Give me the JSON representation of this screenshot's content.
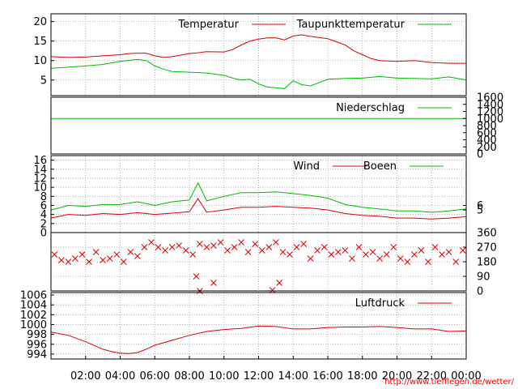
{
  "footer": {
    "url": "http://www.tiefflegen.de/wetter/"
  },
  "colors": {
    "red": "#dd0000",
    "green": "#00bb00",
    "grid": "#a0a0a0",
    "axis": "#000000"
  },
  "chart_data": [
    {
      "id": "temperature",
      "type": "line",
      "legend_placement": "top-right",
      "ylim": [
        1,
        22
      ],
      "y_ticks": [
        "5",
        "10",
        "15",
        "20"
      ],
      "grid": true,
      "series": [
        {
          "name": "Temperatur",
          "color": "#dd0000",
          "x": [
            0.0,
            1.0,
            2.0,
            3.0,
            4.0,
            4.5,
            5.0,
            5.5,
            6.0,
            6.5,
            7.0,
            8.0,
            8.5,
            9.0,
            10.0,
            10.5,
            11.0,
            11.5,
            12.0,
            12.5,
            13.0,
            13.5,
            14.0,
            14.5,
            15.0,
            16.0,
            17.0,
            17.5,
            18.0,
            18.5,
            19.0,
            20.0,
            21.0,
            22.0,
            23.0,
            24.0
          ],
          "values": [
            11.0,
            10.8,
            10.9,
            11.2,
            11.5,
            11.8,
            11.9,
            11.9,
            11.2,
            10.8,
            11.0,
            11.8,
            12.0,
            12.3,
            12.2,
            12.8,
            14.0,
            15.0,
            15.5,
            15.8,
            15.8,
            15.3,
            16.3,
            16.6,
            16.2,
            15.6,
            14.0,
            12.5,
            11.5,
            10.5,
            10.0,
            9.8,
            10.0,
            9.5,
            9.3,
            9.3
          ]
        },
        {
          "name": "Taupunkttemperatur",
          "color": "#00bb00",
          "x": [
            0.0,
            1.0,
            2.0,
            3.0,
            4.0,
            5.0,
            5.5,
            6.0,
            6.5,
            7.0,
            8.0,
            9.0,
            10.0,
            10.5,
            11.0,
            11.5,
            12.0,
            12.5,
            13.0,
            13.5,
            14.0,
            14.5,
            15.0,
            16.0,
            17.0,
            18.0,
            19.0,
            20.0,
            21.0,
            22.0,
            23.0,
            24.0
          ],
          "values": [
            8.0,
            8.3,
            8.6,
            9.0,
            9.8,
            10.3,
            10.0,
            8.6,
            7.8,
            7.2,
            7.0,
            6.8,
            6.2,
            5.5,
            5.0,
            5.2,
            4.0,
            3.2,
            3.0,
            2.8,
            4.8,
            3.8,
            3.5,
            5.2,
            5.4,
            5.5,
            5.9,
            5.5,
            5.4,
            5.3,
            5.8,
            5.0
          ]
        }
      ]
    },
    {
      "id": "precipitation",
      "type": "line",
      "legend_placement": "top-right",
      "ylim": [
        0,
        1600
      ],
      "y_ticks_right": [
        "0",
        "200",
        "400",
        "600",
        "800",
        "1000",
        "1200",
        "1400",
        "1600"
      ],
      "grid": false,
      "series": [
        {
          "name": "Niederschlag",
          "color": "#00bb00",
          "x": [
            0,
            24
          ],
          "values": [
            1000,
            1000
          ]
        }
      ]
    },
    {
      "id": "wind",
      "type": "line",
      "legend_placement": "top-right",
      "ylim": [
        0,
        17
      ],
      "y_ticks": [
        "0",
        "2",
        "4",
        "6",
        "8",
        "10",
        "12",
        "14",
        "16"
      ],
      "y_ticks_right": [
        "5",
        "6"
      ],
      "grid": true,
      "series": [
        {
          "name": "Wind",
          "color": "#dd0000",
          "x": [
            0,
            1,
            2,
            3,
            4,
            5,
            6,
            7,
            8,
            8.5,
            9,
            10,
            11,
            12,
            13,
            14,
            15,
            16,
            17,
            18,
            19,
            20,
            21,
            22,
            23,
            24
          ],
          "values": [
            3.2,
            4.0,
            3.8,
            4.2,
            4.0,
            4.4,
            4.0,
            4.3,
            4.6,
            7.5,
            4.5,
            5.0,
            5.6,
            5.6,
            5.8,
            5.6,
            5.4,
            5.0,
            4.2,
            3.8,
            3.6,
            3.2,
            3.2,
            3.0,
            3.2,
            3.5
          ]
        },
        {
          "name": "Boeen",
          "color": "#00bb00",
          "x": [
            0,
            1,
            2,
            3,
            4,
            5,
            6,
            7,
            8,
            8.5,
            9,
            10,
            11,
            12,
            13,
            14,
            15,
            16,
            17,
            18,
            19,
            20,
            21,
            22,
            23,
            24
          ],
          "values": [
            5.0,
            6.0,
            5.8,
            6.2,
            6.2,
            6.8,
            6.0,
            6.8,
            7.2,
            11.0,
            7.0,
            8.0,
            8.8,
            8.8,
            9.0,
            8.6,
            8.2,
            7.6,
            6.2,
            5.6,
            5.2,
            4.8,
            4.8,
            4.5,
            4.8,
            5.2
          ]
        }
      ]
    },
    {
      "id": "wind_direction",
      "type": "scatter",
      "ylim": [
        0,
        360
      ],
      "y_ticks_right": [
        "0",
        "90",
        "180",
        "270",
        "360"
      ],
      "grid": true,
      "series": [
        {
          "name": "",
          "color": "#dd0000",
          "x": [
            0.2,
            0.6,
            1.0,
            1.4,
            1.8,
            2.2,
            2.6,
            3.0,
            3.4,
            3.8,
            4.2,
            4.6,
            5.0,
            5.4,
            5.8,
            6.2,
            6.6,
            7.0,
            7.4,
            7.8,
            8.2,
            8.6,
            9.0,
            9.4,
            9.8,
            10.2,
            10.6,
            11.0,
            11.4,
            11.8,
            12.2,
            12.6,
            13.0,
            13.4,
            13.8,
            14.2,
            14.6,
            15.0,
            15.4,
            15.8,
            16.2,
            16.6,
            17.0,
            17.4,
            17.8,
            18.2,
            18.6,
            19.0,
            19.4,
            19.8,
            20.2,
            20.6,
            21.0,
            21.4,
            21.8,
            22.2,
            22.6,
            23.0,
            23.4,
            23.8,
            8.4,
            9.4,
            12.8,
            13.2,
            8.6
          ],
          "values": [
            225,
            190,
            180,
            200,
            225,
            180,
            240,
            190,
            200,
            225,
            180,
            240,
            215,
            270,
            300,
            270,
            250,
            270,
            280,
            250,
            225,
            290,
            270,
            280,
            300,
            250,
            270,
            300,
            240,
            290,
            250,
            270,
            300,
            240,
            225,
            270,
            290,
            200,
            250,
            270,
            225,
            240,
            250,
            200,
            270,
            225,
            240,
            200,
            225,
            270,
            200,
            180,
            225,
            250,
            180,
            270,
            225,
            240,
            180,
            250,
            90,
            50,
            5,
            50,
            0
          ]
        }
      ]
    },
    {
      "id": "pressure",
      "type": "line",
      "legend_placement": "top-right",
      "ylim": [
        993,
        1006.5
      ],
      "y_ticks": [
        "994",
        "996",
        "998",
        "1000",
        "1002",
        "1004",
        "1006"
      ],
      "x_ticks": [
        "02:00",
        "04:00",
        "06:00",
        "08:00",
        "10:00",
        "12:00",
        "14:00",
        "16:00",
        "18:00",
        "20:00",
        "22:00",
        "00:00"
      ],
      "grid": true,
      "series": [
        {
          "name": "Luftdruck",
          "color": "#dd0000",
          "x": [
            0,
            1,
            2,
            3,
            3.5,
            4,
            4.5,
            5,
            5.5,
            6,
            7,
            8,
            9,
            10,
            11,
            12,
            13,
            14,
            15,
            16,
            17,
            18,
            19,
            20,
            21,
            22,
            23,
            24
          ],
          "values": [
            998.5,
            997.8,
            996.5,
            995.0,
            994.5,
            994.2,
            994.1,
            994.3,
            995.0,
            995.8,
            996.8,
            997.8,
            998.6,
            999.0,
            999.2,
            999.7,
            999.6,
            999.1,
            999.1,
            999.4,
            999.5,
            999.5,
            999.6,
            999.4,
            999.1,
            999.1,
            998.6,
            998.7
          ]
        }
      ]
    }
  ]
}
